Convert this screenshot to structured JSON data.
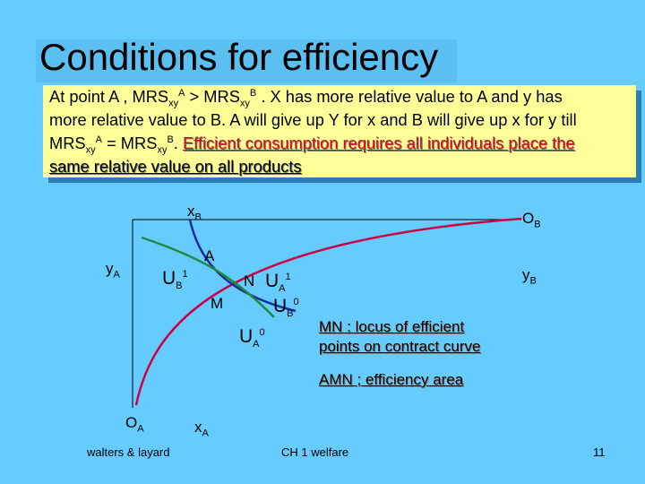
{
  "slide": {
    "title": "Conditions for efficiency",
    "box": {
      "l1_a": "At point A , MRS",
      "l1_sub1": "xy",
      "l1_sup1": "A",
      "l1_b": " > MRS",
      "l1_sub2": "xy",
      "l1_sup2": "B",
      "l1_c": " . X has more relative value to A and y has",
      "l2": "more relative value to B.  A will give up Y for x and B will give up x for y till",
      "l3_a": "MRS",
      "l3_sub1": "xy",
      "l3_sup1": "A",
      "l3_b": " =  MRS",
      "l3_sub2": "xy",
      "l3_sup2": "B",
      "l3_c": ". ",
      "l3_red": "Efficient consumption requires all individuals place the",
      "l4_red": "same relative value on all products"
    },
    "labels": {
      "xB": "x",
      "xB_sub": "B",
      "OB": "O",
      "OB_sub": "B",
      "yA": "y",
      "yA_sub": "A",
      "yB": "y",
      "yB_sub": "B",
      "A": "A",
      "UB1": "U",
      "UB1_sub": "B",
      "UB1_sup": "1",
      "N": "N",
      "UA1": "U",
      "UA1_sub": "A",
      "UA1_sup": "1",
      "M": "M",
      "UB0": "U",
      "UB0_sub": "B",
      "UB0_sup": "0",
      "UA0": "U",
      "UA0_sub": "A",
      "UA0_sup": "0",
      "OA": "O",
      "OA_sub": "A",
      "xA": "x",
      "xA_sub": "A"
    },
    "notes": {
      "mn1": "MN : locus of efficient",
      "mn2": "points on contract curve",
      "amn": "AMN ; efficiency area"
    },
    "footer": {
      "left": "walters & layard",
      "center": "CH 1  welfare",
      "right": "11"
    },
    "colors": {
      "background": "#66ccff",
      "box": "#ffff99",
      "contract_curve": "#cc0044",
      "ua_curve": "#1a2a9a",
      "ub_curve": "#1f8a3c"
    }
  }
}
